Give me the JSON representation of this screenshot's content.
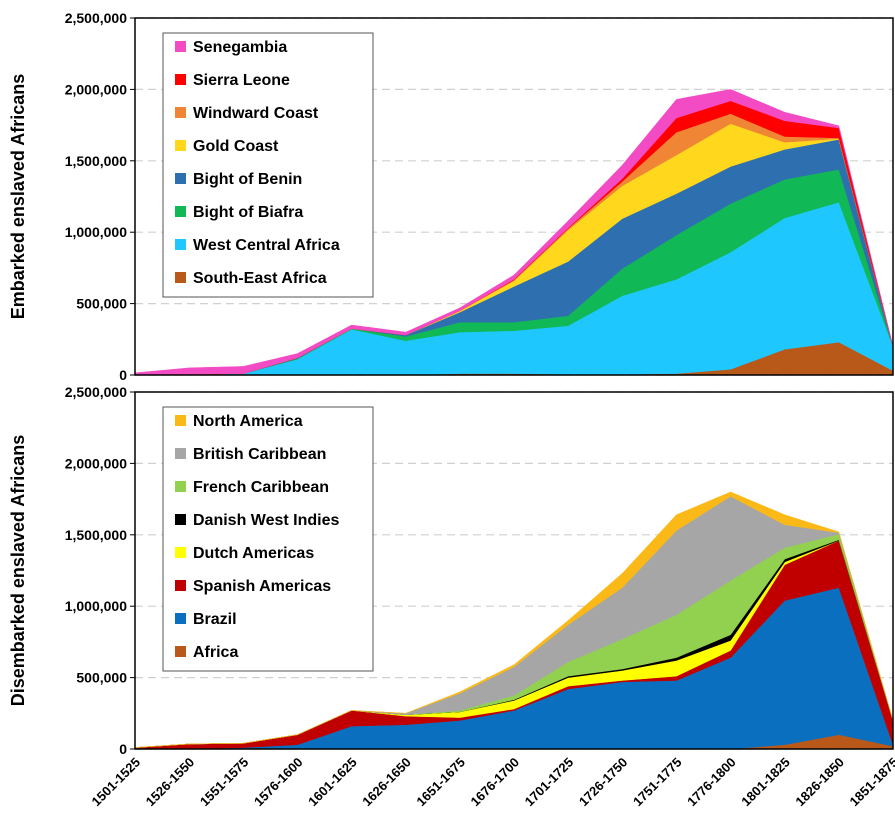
{
  "chart_data": [
    {
      "type": "stacked_area",
      "ylabel": "Embarked enslaved Africans",
      "categories": [
        null,
        null,
        null,
        null,
        null,
        null,
        null,
        null,
        null,
        null,
        null,
        null,
        null,
        null,
        null
      ],
      "ylim": [
        0,
        2500000
      ],
      "yticks": [
        0,
        {
          "value": 500000,
          "label": "500,000"
        },
        {
          "value": 1000000,
          "label": "1,000,000"
        },
        {
          "value": 1500000,
          "label": "1,500,000"
        },
        {
          "value": 2000000,
          "label": "2,000,000"
        },
        {
          "value": 2500000,
          "label": "2,500,000"
        }
      ],
      "grid": true,
      "legend_loc": "upper left",
      "series": [
        {
          "name": "South-East Africa",
          "color": "#b8591a",
          "values": [
            0,
            0,
            0,
            0,
            0,
            0,
            10000,
            10000,
            5000,
            5000,
            10000,
            40000,
            180000,
            230000,
            30000
          ]
        },
        {
          "name": "West Central Africa",
          "color": "#1ec8ff",
          "values": [
            0,
            5000,
            10000,
            110000,
            320000,
            240000,
            290000,
            300000,
            340000,
            550000,
            660000,
            820000,
            920000,
            980000,
            170000
          ]
        },
        {
          "name": "Bight of Biafra",
          "color": "#10b856",
          "values": [
            0,
            0,
            0,
            5000,
            5000,
            30000,
            70000,
            60000,
            70000,
            190000,
            310000,
            340000,
            270000,
            230000,
            0
          ]
        },
        {
          "name": "Bight of Benin",
          "color": "#2e6fb0",
          "values": [
            0,
            0,
            0,
            5000,
            0,
            10000,
            70000,
            250000,
            380000,
            350000,
            290000,
            260000,
            210000,
            210000,
            0
          ]
        },
        {
          "name": "Gold Coast",
          "color": "#ffd81e",
          "values": [
            0,
            0,
            0,
            0,
            0,
            0,
            10000,
            40000,
            220000,
            230000,
            270000,
            300000,
            50000,
            5000,
            0
          ]
        },
        {
          "name": "Windward Coast",
          "color": "#ef8535",
          "values": [
            0,
            0,
            0,
            0,
            0,
            0,
            0,
            5000,
            10000,
            30000,
            160000,
            70000,
            40000,
            5000,
            0
          ]
        },
        {
          "name": "Sierra Leone",
          "color": "#ff0000",
          "values": [
            0,
            0,
            0,
            0,
            0,
            0,
            0,
            5000,
            5000,
            20000,
            100000,
            90000,
            110000,
            70000,
            0
          ]
        },
        {
          "name": "Senegambia",
          "color": "#f24bc3",
          "values": [
            15000,
            45000,
            50000,
            30000,
            25000,
            20000,
            20000,
            30000,
            50000,
            95000,
            130000,
            80000,
            60000,
            15000,
            0
          ]
        }
      ]
    },
    {
      "type": "stacked_area",
      "ylabel": "Disembarked enslaved Africans",
      "categories": [
        "1501-1525",
        "1526-1550",
        "1551-1575",
        "1576-1600",
        "1601-1625",
        "1626-1650",
        "1651-1675",
        "1676-1700",
        "1701-1725",
        "1726-1750",
        "1751-1775",
        "1776-1800",
        "1801-1825",
        "1826-1850",
        "1851-1875"
      ],
      "ylim": [
        0,
        2500000
      ],
      "yticks": [
        0,
        {
          "value": 500000,
          "label": "500,000"
        },
        {
          "value": 1000000,
          "label": "1,000,000"
        },
        {
          "value": 1500000,
          "label": "1,500,000"
        },
        {
          "value": 2000000,
          "label": "2,000,000"
        },
        {
          "value": 2500000,
          "label": "2,500,000"
        }
      ],
      "grid": true,
      "legend_loc": "upper left",
      "series": [
        {
          "name": "Africa",
          "color": "#b8591a",
          "values": [
            0,
            0,
            0,
            0,
            0,
            0,
            0,
            0,
            0,
            0,
            0,
            0,
            30000,
            100000,
            20000
          ]
        },
        {
          "name": "Brazil",
          "color": "#0b6fbf",
          "values": [
            0,
            0,
            10000,
            30000,
            160000,
            170000,
            200000,
            270000,
            420000,
            470000,
            480000,
            640000,
            1010000,
            1030000,
            10000
          ]
        },
        {
          "name": "Spanish Americas",
          "color": "#c00000",
          "values": [
            10000,
            35000,
            30000,
            70000,
            110000,
            60000,
            20000,
            10000,
            20000,
            10000,
            30000,
            50000,
            250000,
            330000,
            170000
          ]
        },
        {
          "name": "Dutch Americas",
          "color": "#ffff00",
          "values": [
            0,
            0,
            0,
            0,
            0,
            10000,
            40000,
            60000,
            60000,
            70000,
            110000,
            70000,
            20000,
            0,
            0
          ]
        },
        {
          "name": "Danish West Indies",
          "color": "#000000",
          "values": [
            0,
            0,
            0,
            0,
            0,
            0,
            0,
            5000,
            10000,
            10000,
            20000,
            40000,
            20000,
            5000,
            0
          ]
        },
        {
          "name": "French Caribbean",
          "color": "#92d050",
          "values": [
            0,
            0,
            0,
            0,
            0,
            0,
            10000,
            30000,
            100000,
            210000,
            300000,
            380000,
            80000,
            40000,
            0
          ]
        },
        {
          "name": "British Caribbean",
          "color": "#a6a6a6",
          "values": [
            0,
            0,
            0,
            0,
            0,
            10000,
            120000,
            200000,
            260000,
            360000,
            590000,
            590000,
            160000,
            10000,
            0
          ]
        },
        {
          "name": "North America",
          "color": "#fbb917",
          "values": [
            0,
            0,
            0,
            0,
            0,
            0,
            10000,
            15000,
            30000,
            100000,
            110000,
            30000,
            70000,
            5000,
            0
          ]
        }
      ]
    }
  ]
}
